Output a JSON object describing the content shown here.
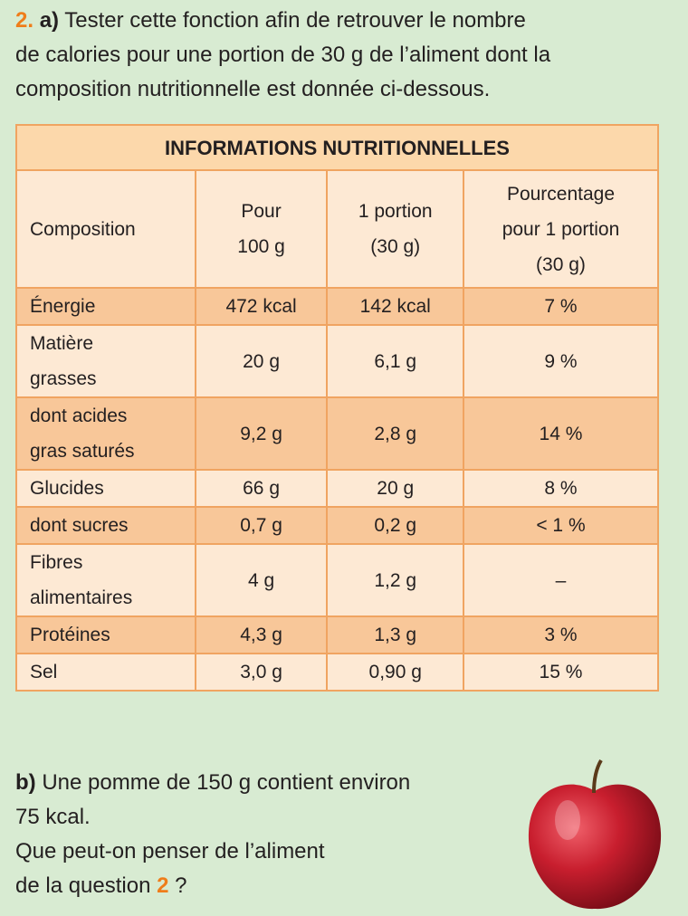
{
  "question_a": {
    "number": "2.",
    "label": "a)",
    "text": "Tester cette fonction afin de retrouver le nombre\nde calories pour une portion de 30 g de l’aliment dont la\ncomposition nutritionnelle est donnée ci-dessous."
  },
  "table": {
    "title": "INFORMATIONS NUTRITIONNELLES",
    "columns": [
      "Composition",
      "Pour\n100 g",
      "1 portion\n(30 g)",
      "Pourcentage\npour 1 portion\n(30 g)"
    ],
    "rows": [
      [
        "Énergie",
        "472 kcal",
        "142 kcal",
        "7 %"
      ],
      [
        "Matière\ngrasses",
        "20 g",
        "6,1 g",
        "9 %"
      ],
      [
        "dont acides\ngras saturés",
        "9,2 g",
        "2,8 g",
        "14 %"
      ],
      [
        "Glucides",
        "66 g",
        "20 g",
        "8 %"
      ],
      [
        "dont sucres",
        "0,7 g",
        "0,2 g",
        "< 1 %"
      ],
      [
        "Fibres\nalimentaires",
        "4 g",
        "1,2 g",
        "–"
      ],
      [
        "Protéines",
        "4,3 g",
        "1,3 g",
        "3 %"
      ],
      [
        "Sel",
        "3,0 g",
        "0,90 g",
        "15 %"
      ]
    ]
  },
  "question_b": {
    "label": "b)",
    "text": "Une pomme de 150 g contient environ\n75 kcal.\nQue peut-on penser de l’aliment\nde la question",
    "ref": "2",
    "end": "?"
  }
}
